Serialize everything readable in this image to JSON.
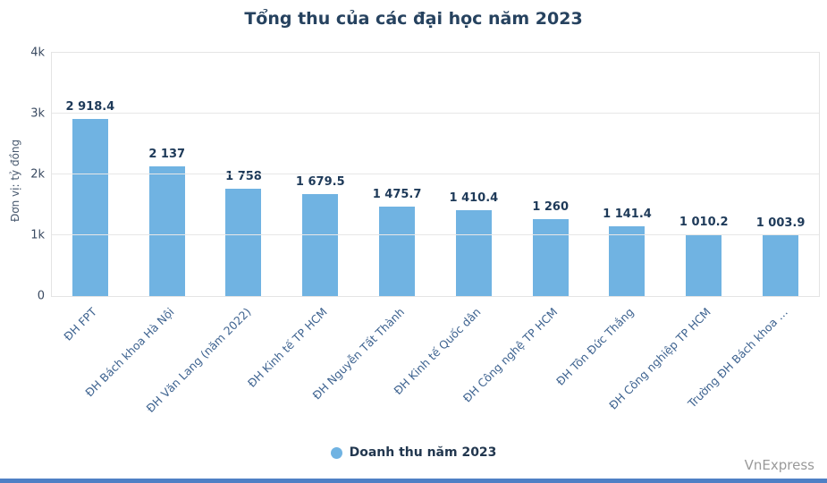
{
  "watermark": "VnExpress",
  "colors": {
    "bar": "#70B3E2",
    "title": "#26425F",
    "grid": "#E7E7E7",
    "bottom_strip": "#4F80C5"
  },
  "chart_data": {
    "type": "bar",
    "title": "Tổng thu của các đại học năm 2023",
    "ylabel": "Đơn vị: tỷ đồng",
    "xlabel": "",
    "categories": [
      "ĐH FPT",
      "ĐH Bách khoa Hà Nội",
      "ĐH Văn Lang (năm 2022)",
      "ĐH Kinh tế TP HCM",
      "ĐH Nguyễn Tất Thành",
      "ĐH Kinh tế Quốc dân",
      "ĐH Công nghệ TP HCM",
      "ĐH Tôn Đức Thắng",
      "ĐH Công nghiệp TP HCM",
      "Trường ĐH Bách khoa …"
    ],
    "values": [
      2918.4,
      2137,
      1758,
      1679.5,
      1475.7,
      1410.4,
      1260,
      1141.4,
      1010.2,
      1003.9
    ],
    "value_labels": [
      "2 918.4",
      "2 137",
      "1 758",
      "1 679.5",
      "1 475.7",
      "1 410.4",
      "1 260",
      "1 141.4",
      "1 010.2",
      "1 003.9"
    ],
    "ylim": [
      0,
      4000
    ],
    "yticks": [
      "0",
      "1k",
      "2k",
      "3k",
      "4k"
    ],
    "grid": true,
    "legend_position": "bottom",
    "legend_label": "Doanh thu năm 2023",
    "bar_color": "#70B3E2"
  }
}
